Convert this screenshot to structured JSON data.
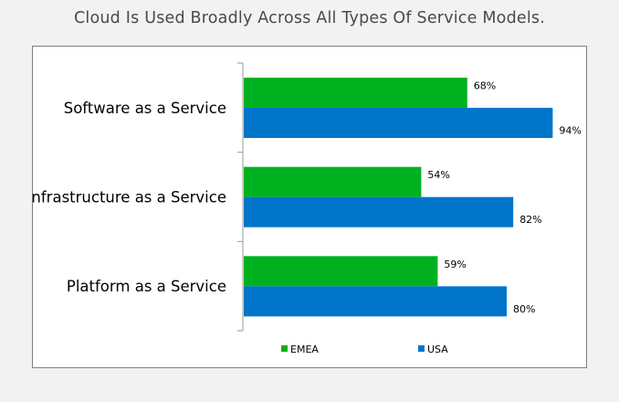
{
  "page_title": "Cloud Is Used Broadly Across All Types Of Service Models.",
  "colors": {
    "EMEA": "#00b11f",
    "USA": "#0075c9"
  },
  "chart_data": {
    "type": "bar",
    "orientation": "horizontal",
    "categories": [
      "Software as a Service",
      "Infrastructure as a Service",
      "Platform as a Service"
    ],
    "series": [
      {
        "name": "EMEA",
        "values": [
          68,
          54,
          59
        ],
        "labels": [
          "68%",
          "54%",
          "59%"
        ]
      },
      {
        "name": "USA",
        "values": [
          94,
          82,
          80
        ],
        "labels": [
          "94%",
          "82%",
          "80%"
        ]
      }
    ],
    "xlim": [
      0,
      100
    ],
    "unit": "%",
    "legend": "bottom",
    "grid": false
  }
}
